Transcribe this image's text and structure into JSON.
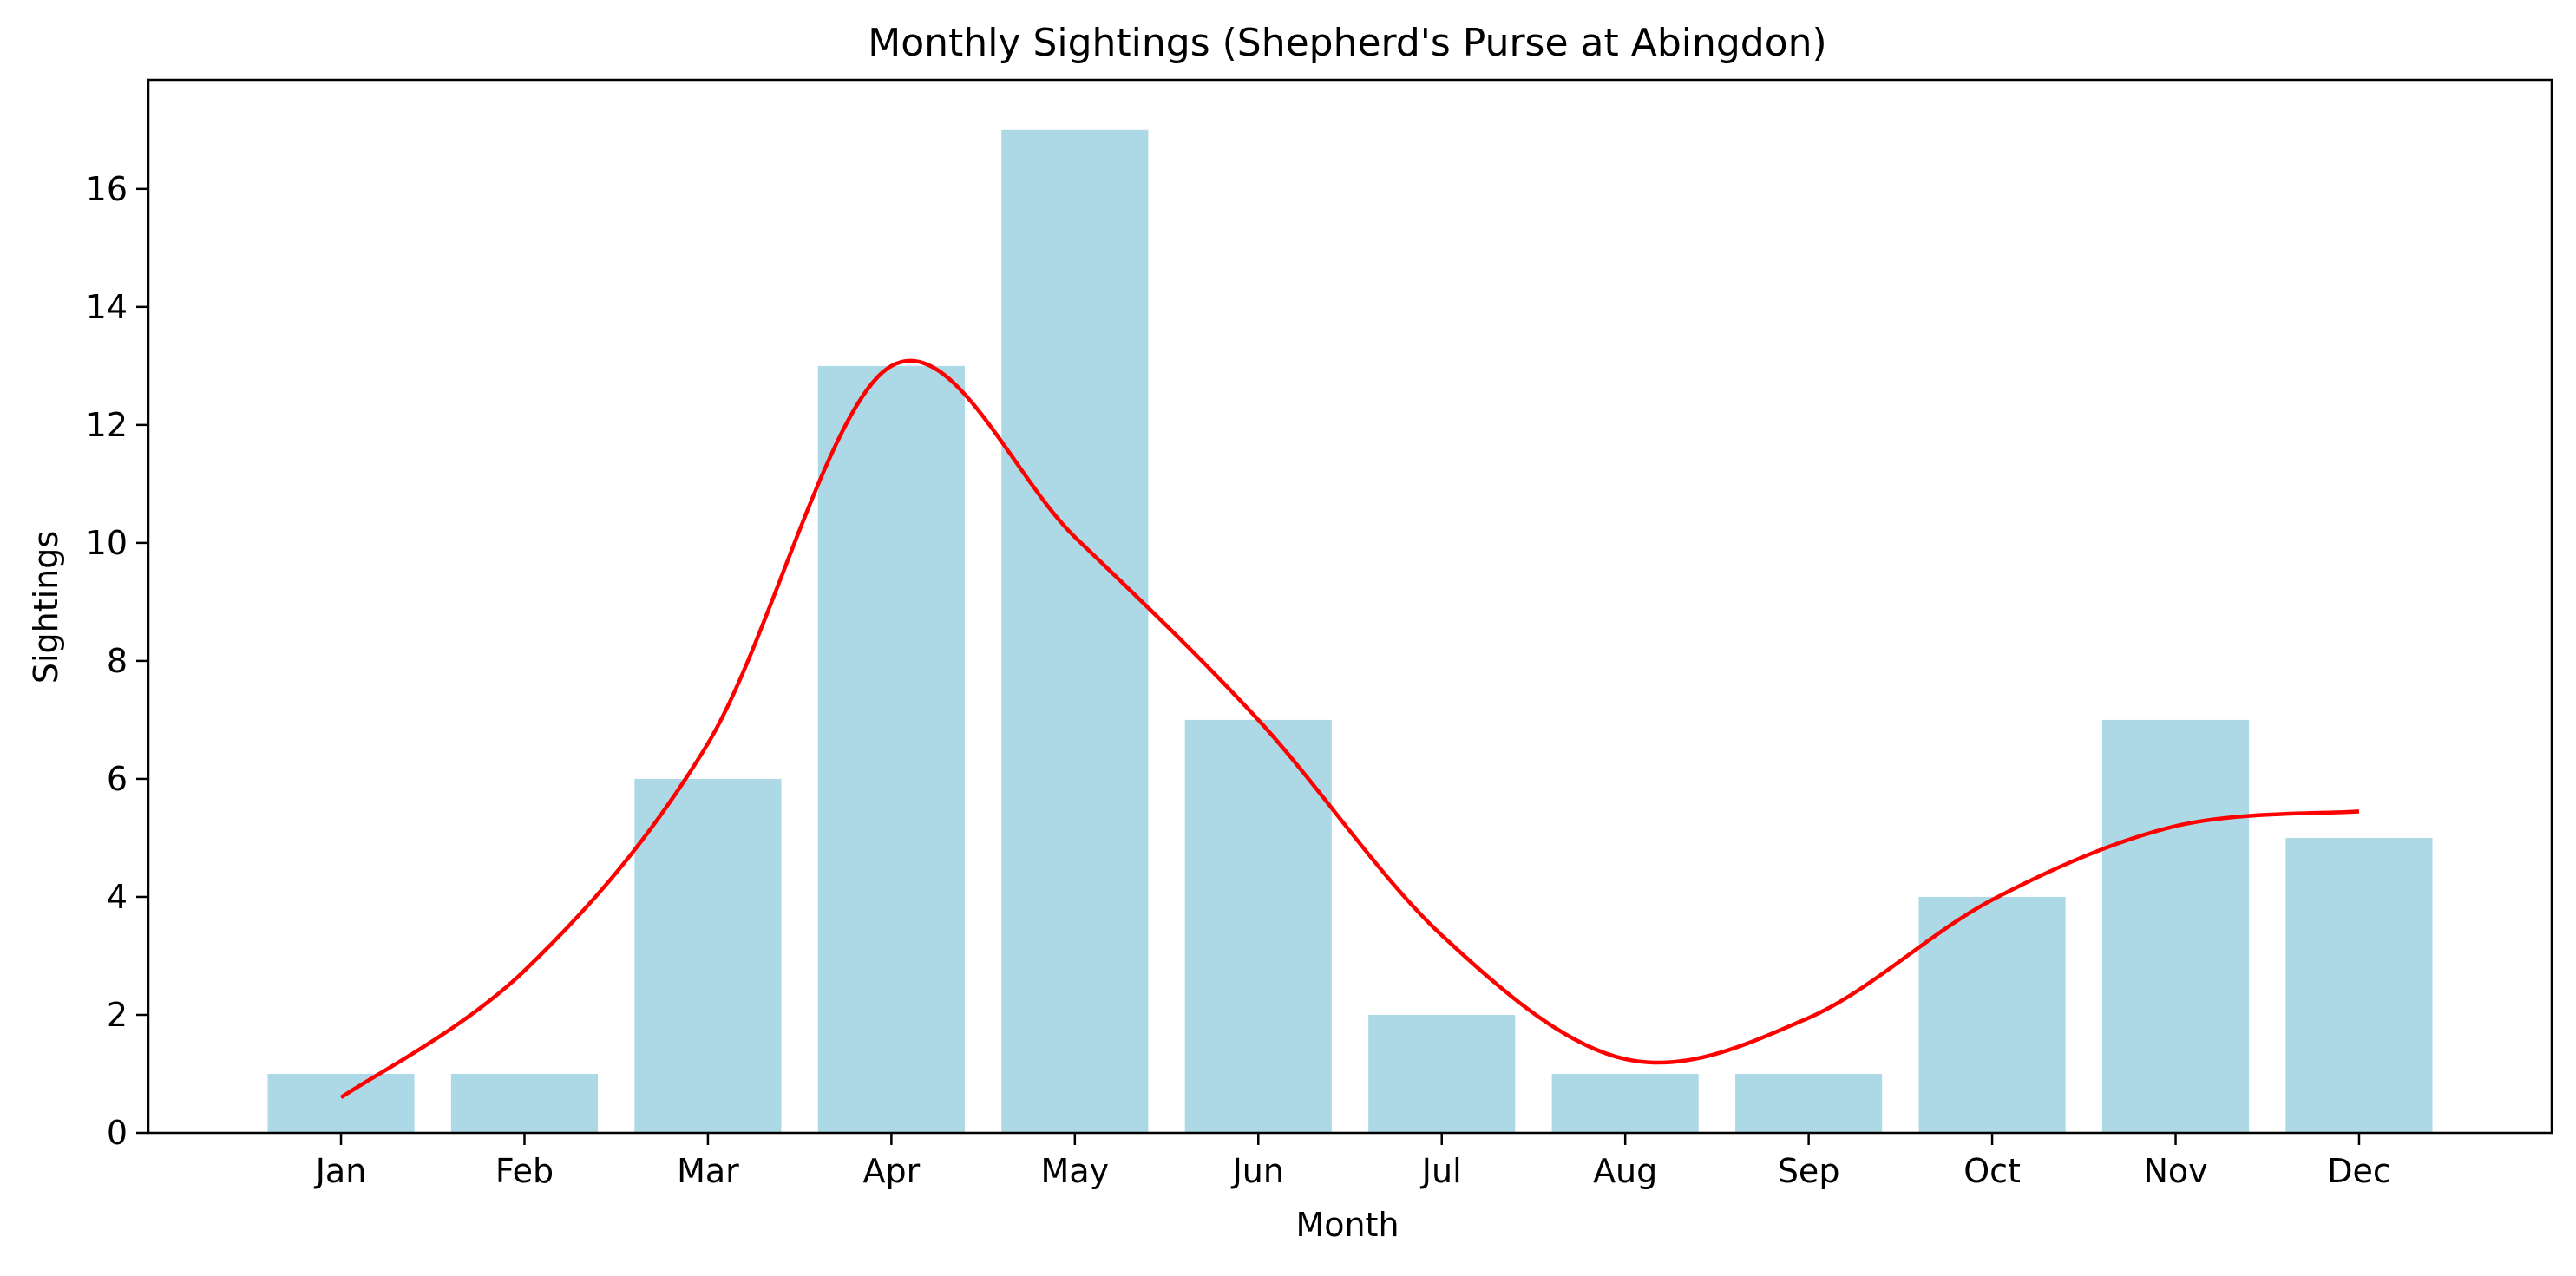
{
  "chart_data": {
    "type": "bar",
    "title": "Monthly Sightings (Shepherd's Purse at Abingdon)",
    "xlabel": "Month",
    "ylabel": "Sightings",
    "categories": [
      "Jan",
      "Feb",
      "Mar",
      "Apr",
      "May",
      "Jun",
      "Jul",
      "Aug",
      "Sep",
      "Oct",
      "Nov",
      "Dec"
    ],
    "values": [
      1,
      1,
      6,
      13,
      17,
      7,
      2,
      1,
      1,
      4,
      7,
      5
    ],
    "ylim": [
      0,
      17.85
    ],
    "yticks": [
      0,
      2,
      4,
      6,
      8,
      10,
      12,
      14,
      16
    ],
    "grid": false,
    "bar_color": "#add8e6",
    "trend_line": {
      "type": "line",
      "color": "#ff0000",
      "x": [
        "Jan",
        "Feb",
        "Mar",
        "Apr",
        "May",
        "Jun",
        "Jul",
        "Aug",
        "Sep",
        "Oct",
        "Nov",
        "Dec"
      ],
      "values": [
        0.6,
        2.75,
        6.6,
        13.0,
        10.1,
        7.0,
        3.35,
        1.25,
        1.95,
        3.95,
        5.2,
        5.45
      ]
    }
  }
}
